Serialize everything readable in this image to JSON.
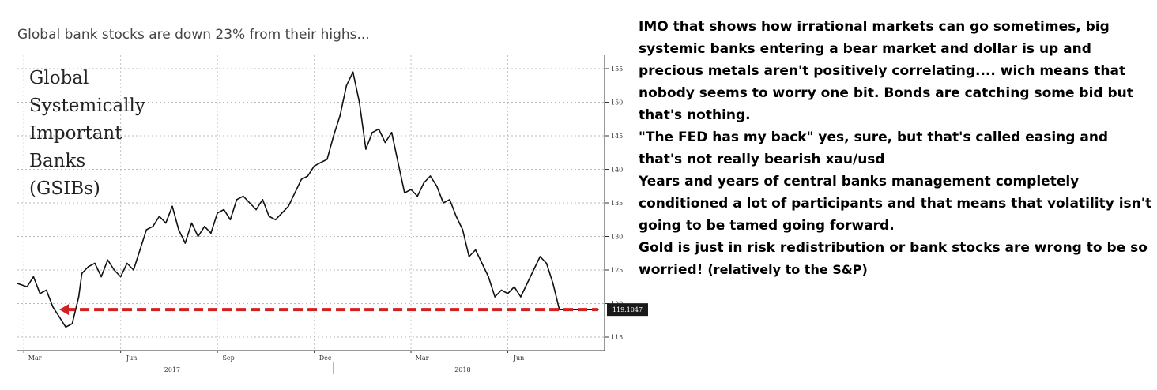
{
  "caption": "Global bank stocks are down 23% from their highs...",
  "chart_data": {
    "type": "line",
    "title_lines": [
      "Global",
      "Systemically",
      "Important",
      "Banks",
      "(GSIBs)"
    ],
    "y_ticks": [
      115,
      120,
      125,
      130,
      135,
      140,
      145,
      150,
      155
    ],
    "ylim": [
      113,
      157
    ],
    "x_tick_labels": [
      "Mar",
      "Jun",
      "Sep",
      "Dec",
      "Mar",
      "Jun"
    ],
    "x_tick_values": [
      0.2,
      3.2,
      6.2,
      9.2,
      12.2,
      15.2
    ],
    "xlim": [
      0,
      18.2
    ],
    "year_labels": [
      {
        "label": "2017",
        "x": 4.8
      },
      {
        "label": "2018",
        "x": 13.8
      }
    ],
    "last_value_label": "119.1047",
    "last_value": 119.1,
    "support_arrow": {
      "from_x": 1.3,
      "to_x": 18.0,
      "y": 119.1,
      "color": "#d42020"
    },
    "series": [
      {
        "name": "GSIBs",
        "color": "#111111",
        "x": [
          0.0,
          0.3,
          0.5,
          0.7,
          0.9,
          1.1,
          1.3,
          1.5,
          1.7,
          1.9,
          2.0,
          2.2,
          2.4,
          2.6,
          2.8,
          3.0,
          3.2,
          3.4,
          3.6,
          3.8,
          4.0,
          4.2,
          4.4,
          4.6,
          4.8,
          5.0,
          5.2,
          5.4,
          5.6,
          5.8,
          6.0,
          6.2,
          6.4,
          6.6,
          6.8,
          7.0,
          7.2,
          7.4,
          7.6,
          7.8,
          8.0,
          8.2,
          8.4,
          8.6,
          8.8,
          9.0,
          9.2,
          9.4,
          9.6,
          9.8,
          10.0,
          10.2,
          10.4,
          10.6,
          10.8,
          11.0,
          11.2,
          11.4,
          11.6,
          11.8,
          12.0,
          12.2,
          12.4,
          12.6,
          12.8,
          13.0,
          13.2,
          13.4,
          13.6,
          13.8,
          14.0,
          14.2,
          14.4,
          14.6,
          14.8,
          15.0,
          15.2,
          15.4,
          15.6,
          15.8,
          16.0,
          16.2,
          16.4,
          16.6,
          16.8,
          17.0,
          17.2,
          17.4,
          17.6,
          17.8,
          18.0
        ],
        "values": [
          123.0,
          122.5,
          124.0,
          121.5,
          122.0,
          119.5,
          118.0,
          116.5,
          117.0,
          121.0,
          124.5,
          125.5,
          126.0,
          124.0,
          126.5,
          125.0,
          124.0,
          126.0,
          125.0,
          128.0,
          131.0,
          131.5,
          133.0,
          132.0,
          134.5,
          131.0,
          129.0,
          132.0,
          130.0,
          131.5,
          130.5,
          133.5,
          134.0,
          132.5,
          135.5,
          136.0,
          135.0,
          134.0,
          135.5,
          133.0,
          132.5,
          133.5,
          134.5,
          136.5,
          138.5,
          139.0,
          140.5,
          141.0,
          141.5,
          145.0,
          148.0,
          152.5,
          154.5,
          150.0,
          143.0,
          145.5,
          146.0,
          144.0,
          145.5,
          141.0,
          136.5,
          137.0,
          136.0,
          138.0,
          139.0,
          137.5,
          135.0,
          135.5,
          133.0,
          131.0,
          127.0,
          128.0,
          126.0,
          124.0,
          121.0,
          122.0,
          121.5,
          122.5,
          121.0,
          123.0,
          125.0,
          127.0,
          126.0,
          123.0,
          119.1,
          119.1,
          119.1,
          119.1,
          119.1,
          119.1,
          119.1
        ]
      }
    ]
  },
  "comment": {
    "line1": "IMO that shows how irrational markets can go sometimes, big systemic banks entering a bear market and dollar is up and precious metals aren't positively correlating.... wich means that nobody seems to worry one bit. Bonds are catching some bid but that's nothing.",
    "line2": "\"The FED has my back\" yes, sure, but that's called easing and that's not really bearish xau/usd",
    "line3": "Years and years of central banks management completely conditioned a lot of participants and that means that volatility isn't going to be tamed going forward.",
    "line4_main": "Gold is just in risk redistribution or bank stocks are wrong to be so worried!",
    "line4_tail": "(relatively to the S&P)"
  }
}
